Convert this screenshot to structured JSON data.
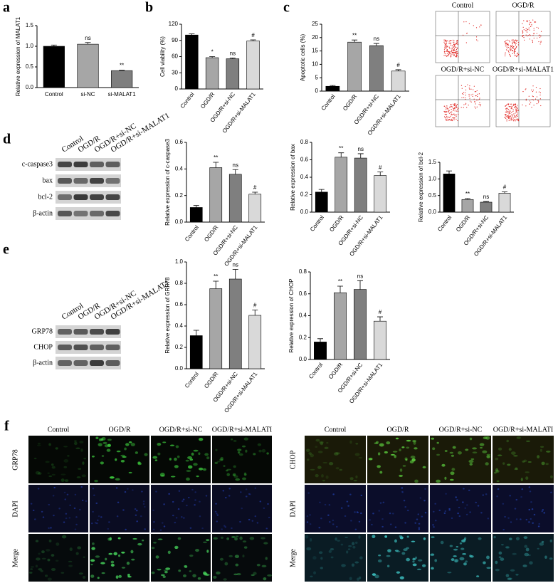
{
  "panel_letters": [
    "a",
    "b",
    "c",
    "d",
    "e",
    "f"
  ],
  "chart_data": [
    {
      "type": "bar",
      "ylabel": "Relative expression of MALAT1",
      "categories": [
        "Control",
        "si-NC",
        "si-MALAT1"
      ],
      "values": [
        1.0,
        1.05,
        0.41
      ],
      "errors": [
        0.03,
        0.04,
        0.01
      ],
      "annotations": [
        null,
        "ns",
        "**"
      ],
      "colors": [
        "#000000",
        "#a6a6a6",
        "#7f7f7f"
      ],
      "ylim": [
        0,
        1.5
      ],
      "yticks": [
        {
          "value": 0,
          "label": "0.0"
        },
        {
          "value": 0.5,
          "label": "0.5"
        },
        {
          "value": 1,
          "label": "1.0"
        },
        {
          "value": 1.5,
          "label": "1.5"
        }
      ]
    },
    {
      "type": "bar",
      "ylabel": "Cell viability (%)",
      "categories": [
        "Control",
        "OGD/R",
        "OGD/R+si-NC",
        "OGD/R+si-MALAT1"
      ],
      "values": [
        100,
        58,
        56,
        89
      ],
      "errors": [
        2,
        2,
        1.5,
        2
      ],
      "annotations": [
        null,
        "*",
        "ns",
        "#"
      ],
      "colors": [
        "#000000",
        "#a6a6a6",
        "#7f7f7f",
        "#d9d9d9"
      ],
      "ylim": [
        0,
        120
      ],
      "yticks": [
        0,
        30,
        60,
        90,
        120
      ]
    },
    {
      "type": "bar",
      "ylabel": "Apoptotic cells (%)",
      "categories": [
        "Control",
        "OGD/R",
        "OGD/R+si-NC",
        "OGD/R+si-MALAT1"
      ],
      "values": [
        1.8,
        18.3,
        17,
        7.5
      ],
      "errors": [
        0.3,
        0.8,
        0.8,
        0.5
      ],
      "annotations": [
        null,
        "**",
        "ns",
        "#"
      ],
      "colors": [
        "#000000",
        "#a6a6a6",
        "#7f7f7f",
        "#d9d9d9"
      ],
      "ylim": [
        0,
        25
      ],
      "yticks": [
        0,
        5,
        10,
        15,
        20,
        25
      ]
    },
    {
      "type": "bar",
      "ylabel": "Relative expression of c-caspase3",
      "categories": [
        "Control",
        "OGD/R",
        "OGD/R+si-NC",
        "OGD/R+si-MALAT1"
      ],
      "values": [
        0.11,
        0.41,
        0.36,
        0.21
      ],
      "errors": [
        0.015,
        0.04,
        0.035,
        0.015
      ],
      "annotations": [
        null,
        "**",
        "ns",
        "#"
      ],
      "colors": [
        "#000000",
        "#a6a6a6",
        "#7f7f7f",
        "#d9d9d9"
      ],
      "ylim": [
        0,
        0.6
      ],
      "yticks": [
        {
          "value": 0,
          "label": "0.0"
        },
        0.2,
        0.4,
        0.6
      ]
    },
    {
      "type": "bar",
      "ylabel": "Relative expression of bax",
      "categories": [
        "Control",
        "OGD/R",
        "OGD/R+si-NC",
        "OGD/R+si-MALAT1"
      ],
      "values": [
        0.23,
        0.63,
        0.62,
        0.42
      ],
      "errors": [
        0.03,
        0.05,
        0.05,
        0.04
      ],
      "annotations": [
        null,
        "**",
        "ns",
        "#"
      ],
      "colors": [
        "#000000",
        "#a6a6a6",
        "#7f7f7f",
        "#d9d9d9"
      ],
      "ylim": [
        0,
        0.8
      ],
      "yticks": [
        {
          "value": 0,
          "label": "0.0"
        },
        0.2,
        0.4,
        0.6,
        0.8
      ]
    },
    {
      "type": "bar",
      "ylabel": "Relative expression of bcl-2",
      "categories": [
        "Control",
        "OGD/R",
        "OGD/R+si-NC",
        "OGD/R+si-MALAT1"
      ],
      "values": [
        1.15,
        0.38,
        0.3,
        0.57
      ],
      "errors": [
        0.09,
        0.03,
        0.02,
        0.04
      ],
      "annotations": [
        null,
        "**",
        "ns",
        "#"
      ],
      "colors": [
        "#000000",
        "#a6a6a6",
        "#7f7f7f",
        "#d9d9d9"
      ],
      "ylim": [
        0,
        1.5
      ],
      "yticks": [
        {
          "value": 0,
          "label": "0.0"
        },
        0.5,
        {
          "value": 1,
          "label": "1.0"
        },
        1.5
      ]
    },
    {
      "type": "bar",
      "ylabel": "Relative expression of GRP78",
      "categories": [
        "Control",
        "OGD/R",
        "OGD/R+si-NC",
        "OGD/R+si-MALAT1"
      ],
      "values": [
        0.31,
        0.75,
        0.84,
        0.5
      ],
      "errors": [
        0.05,
        0.07,
        0.09,
        0.05
      ],
      "annotations": [
        null,
        "**",
        "ns",
        "#"
      ],
      "colors": [
        "#000000",
        "#a6a6a6",
        "#7f7f7f",
        "#d9d9d9"
      ],
      "ylim": [
        0,
        1.0
      ],
      "yticks": [
        {
          "value": 0,
          "label": "0.0"
        },
        0.2,
        0.4,
        0.6,
        0.8,
        {
          "value": 1,
          "label": "1.0"
        }
      ]
    },
    {
      "type": "bar",
      "ylabel": "Relative expression of CHOP",
      "categories": [
        "Control",
        "OGD/R",
        "OGD/R+si-NC",
        "OGD/R+si-MALAT1"
      ],
      "values": [
        0.16,
        0.61,
        0.64,
        0.35
      ],
      "errors": [
        0.03,
        0.06,
        0.08,
        0.04
      ],
      "annotations": [
        null,
        "**",
        "ns",
        "#"
      ],
      "colors": [
        "#000000",
        "#a6a6a6",
        "#7f7f7f",
        "#d9d9d9"
      ],
      "ylim": [
        0,
        0.8
      ],
      "yticks": [
        {
          "value": 0,
          "label": "0.0"
        },
        0.2,
        0.4,
        0.6,
        0.8
      ]
    }
  ],
  "flow_cytometry": {
    "labels": [
      "Control",
      "OGD/R",
      "OGD/R+si-NC",
      "OGD/R+si-MALAT1"
    ]
  },
  "western_blots": [
    {
      "lanes": [
        "Control",
        "OGD/R",
        "OGD/R+si-NC",
        "OGD/R+si-MALAT1"
      ],
      "bands": [
        "c-caspase3",
        "bax",
        "bcl-2",
        "β-actin"
      ]
    },
    {
      "lanes": [
        "Control",
        "OGD/R",
        "OGD/R+si-NC",
        "OGD/R+si-MALAT1"
      ],
      "bands": [
        "GRP78",
        "CHOP",
        "β-actin"
      ]
    }
  ],
  "immunofluorescence": [
    {
      "columns": [
        "Control",
        "OGD/R",
        "OGD/R+si-NC",
        "OGD/R+si-MALATI"
      ],
      "rows": [
        "GRP78",
        "DAPI",
        "Merge"
      ]
    },
    {
      "columns": [
        "Control",
        "OGD/R",
        "OGD/R+si-NC",
        "OGD/R+si-MALATI"
      ],
      "rows": [
        "CHOP",
        "DAPI",
        "Merge"
      ]
    }
  ]
}
